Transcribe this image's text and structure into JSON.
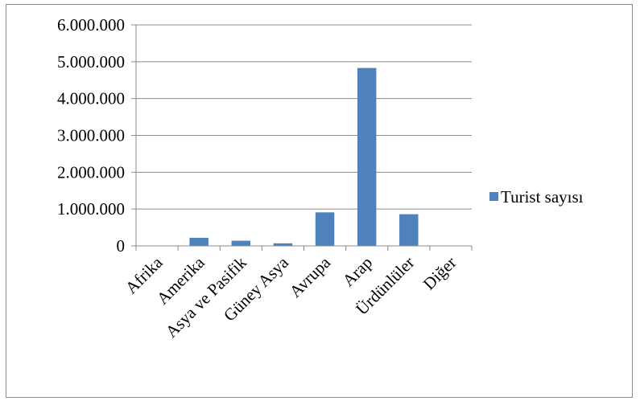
{
  "chart_data": {
    "type": "bar",
    "title": "",
    "xlabel": "",
    "ylabel": "",
    "categories": [
      "Afrika",
      "Amerika",
      "Asya ve Pasifik",
      "Güney Asya",
      "Avrupa",
      "Arap",
      "Ürdünlüler",
      "Diğer"
    ],
    "series": [
      {
        "name": "Turist sayısı",
        "color": "#4f81bd",
        "values": [
          0,
          220000,
          140000,
          70000,
          910000,
          4830000,
          860000,
          0
        ]
      }
    ],
    "ylim": [
      0,
      6000000
    ],
    "yticks": [
      0,
      1000000,
      2000000,
      3000000,
      4000000,
      5000000,
      6000000
    ],
    "ytick_labels": [
      "0",
      "1.000.000",
      "2.000.000",
      "3.000.000",
      "4.000.000",
      "5.000.000",
      "6.000.000"
    ],
    "grid": true,
    "legend_position": "right"
  }
}
